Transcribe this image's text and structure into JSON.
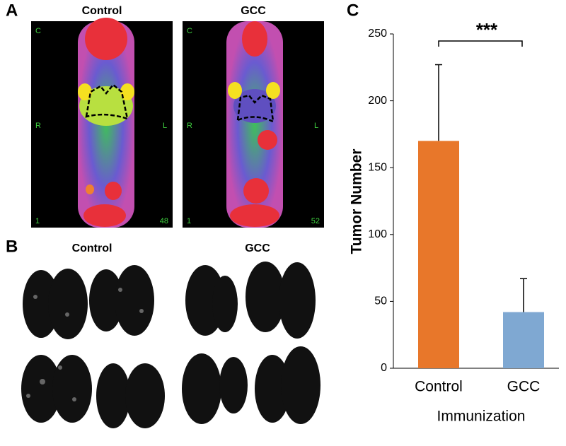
{
  "panels": {
    "a": {
      "label": "A",
      "left_title": "Control",
      "right_title": "GCC",
      "left_marks": [
        "C",
        "R",
        "L",
        "1",
        "48"
      ],
      "right_marks": [
        "C",
        "R",
        "L",
        "1",
        "52"
      ]
    },
    "b": {
      "label": "B",
      "left_title": "Control",
      "right_title": "GCC"
    },
    "c": {
      "label": "C"
    }
  },
  "chart_data": {
    "type": "bar",
    "categories": [
      "Control",
      "GCC"
    ],
    "values": [
      170,
      42
    ],
    "errors": [
      57,
      25
    ],
    "colors": [
      "#e8772a",
      "#7fa8d2"
    ],
    "ylabel": "Tumor Number",
    "xlabel": "Immunization",
    "annotation": "***",
    "ylim": [
      0,
      250
    ],
    "yticks": [
      0,
      50,
      100,
      150,
      200,
      250
    ]
  }
}
